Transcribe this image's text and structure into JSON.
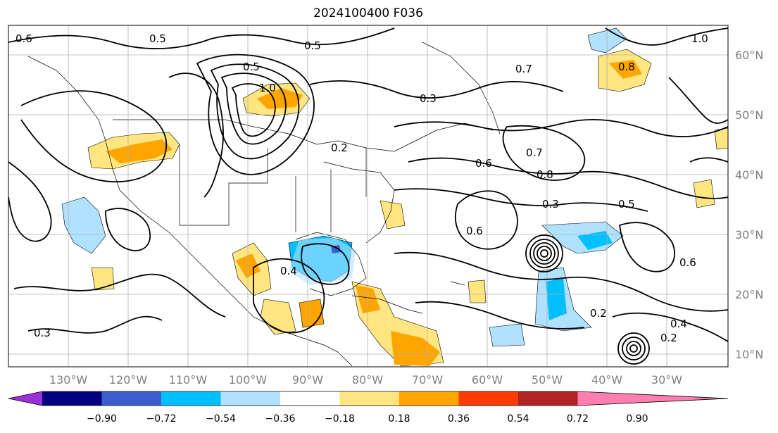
{
  "title": "2024100400 F036",
  "map": {
    "lon_labels": [
      "130°W",
      "120°W",
      "110°W",
      "100°W",
      "90°W",
      "80°W",
      "70°W",
      "60°W",
      "50°W",
      "40°W",
      "30°W"
    ],
    "lat_labels": [
      "60°N",
      "50°N",
      "40°N",
      "30°N",
      "20°N",
      "10°N"
    ],
    "contour_labels": [
      "0.6",
      "0.5",
      "0.5",
      "1.0",
      "0.3",
      "0.7",
      "0.8",
      "0.7",
      "0.6",
      "0.8",
      "0.3",
      "0.5",
      "0.6",
      "0.2",
      "0.4",
      "0.3",
      "0.2",
      "0.4",
      "0.2",
      "0.5",
      "1.0",
      "0.6"
    ],
    "land_color": "#ffffff",
    "grid_color": "#b0b0b0"
  },
  "colorbar": {
    "tick_labels": [
      "−0.90",
      "−0.72",
      "−0.54",
      "−0.36",
      "−0.18",
      "0.18",
      "0.36",
      "0.54",
      "0.72",
      "0.90"
    ],
    "colors": [
      "#9b30d9",
      "#000080",
      "#3a5fcd",
      "#00bfff",
      "#b0e2ff",
      "#ffffff",
      "#ffe680",
      "#ffa500",
      "#ff3b00",
      "#b22222",
      "#ff7fb0"
    ]
  }
}
